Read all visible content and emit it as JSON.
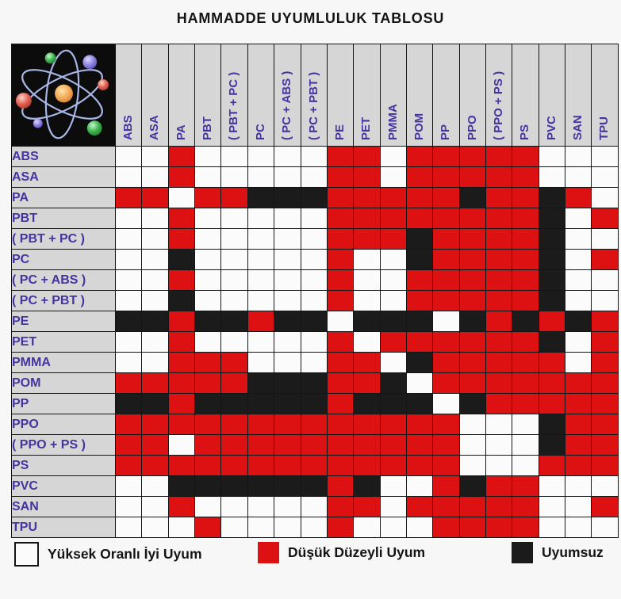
{
  "title": "HAMMADDE UYUMLULUK TABLOSU",
  "legend": {
    "items": [
      {
        "code": "W",
        "label": "Yüksek Oranlı İyi Uyum",
        "color": "#fbfbfb"
      },
      {
        "code": "R",
        "label": "Düşük Düzeyli Uyum",
        "color": "#dd1111"
      },
      {
        "code": "B",
        "label": "Uyumsuz",
        "color": "#1b1b1b"
      }
    ]
  },
  "chart_data": {
    "type": "heatmap",
    "title": "HAMMADDE UYUMLULUK TABLOSU",
    "legend_position": "bottom",
    "columns": [
      "ABS",
      "ASA",
      "PA",
      "PBT",
      "( PBT + PC )",
      "PC",
      "( PC + ABS )",
      "( PC + PBT )",
      "PE",
      "PET",
      "PMMA",
      "POM",
      "PP",
      "PPO",
      "( PPO + PS )",
      "PS",
      "PVC",
      "SAN",
      "TPU"
    ],
    "rows": [
      "ABS",
      "ASA",
      "PA",
      "PBT",
      "( PBT + PC )",
      "PC",
      "( PC + ABS )",
      "( PC + PBT )",
      "PE",
      "PET",
      "PMMA",
      "POM",
      "PP",
      "PPO",
      "( PPO + PS )",
      "PS",
      "PVC",
      "SAN",
      "TPU"
    ],
    "cell_codes": {
      "W": "Yüksek Oranlı İyi Uyum",
      "R": "Düşük Düzeyli Uyum",
      "B": "Uyumsuz"
    },
    "cell_colors": {
      "W": "#fbfbfb",
      "R": "#dd1111",
      "B": "#1b1b1b"
    },
    "matrix": [
      "WWRWWWWWRRWRRRRRWWW",
      "WWRWWWWWRRWRRRRRWWW",
      "RRWRRBBBRRRRRBRRBRW",
      "WWRWWWWWRRRRRRRRBWR",
      "WWRWWWWWRRRBRRRRBWW",
      "WWBWWWWWRWWBRRRRBWR",
      "WWRWWWWWRWWRRRRRBWW",
      "WWBWWWWWRWWRRRRRBWW",
      "BBRBBRBBWBBBWBRBRBR",
      "WWRWWWWWRWRRRRRRBWR",
      "WWRRRWWWRRWBRRRRRWR",
      "RRRRRBBBRRBWRRRRRRR",
      "BBRBBBBBRBBBWBRRRRR",
      "RRRRRRRRRRRRRWWWBRR",
      "RRWRRRRRRRRRRWWWBRR",
      "RRRRRRRRRRRRRWWWRRR",
      "WWBBBBBBRBWWRBRRWWW",
      "WWRWWWWWRRWRRRRRWWR",
      "WWWRWWWWRWWWRRRRWWW"
    ]
  }
}
